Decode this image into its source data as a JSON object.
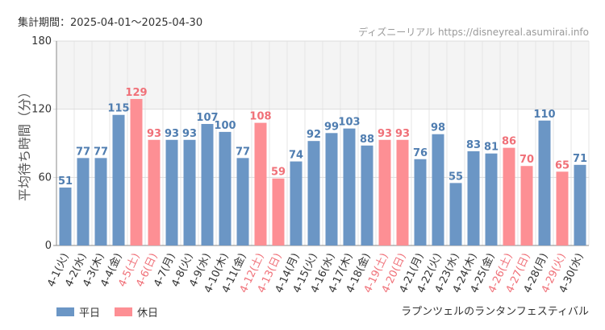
{
  "header": {
    "period": "集計期間：2025-04-01～2025-04-30",
    "source": "ディズニーリアル https://disneyreal.asumirai.info"
  },
  "chart_data": {
    "type": "bar",
    "title": "",
    "subtitle": "ラプンツェルのランタンフェスティバル",
    "ylabel": "平均待ち時間（分）",
    "xlabel": "",
    "ylim": [
      0,
      180
    ],
    "yticks": [
      0,
      60,
      120,
      180
    ],
    "grid": true,
    "legend_position": "bottom-left",
    "categories": [
      "4-1(火)",
      "4-2(水)",
      "4-3(木)",
      "4-4(金)",
      "4-5(土)",
      "4-6(日)",
      "4-7(月)",
      "4-8(火)",
      "4-9(水)",
      "4-10(木)",
      "4-11(金)",
      "4-12(土)",
      "4-13(日)",
      "4-14(月)",
      "4-15(火)",
      "4-16(水)",
      "4-17(木)",
      "4-18(金)",
      "4-19(土)",
      "4-20(日)",
      "4-21(月)",
      "4-22(火)",
      "4-23(水)",
      "4-24(木)",
      "4-25(金)",
      "4-26(土)",
      "4-27(日)",
      "4-28(月)",
      "4-29(火)",
      "4-30(水)"
    ],
    "values": [
      51,
      77,
      77,
      115,
      129,
      93,
      93,
      93,
      107,
      100,
      77,
      108,
      59,
      74,
      92,
      99,
      103,
      88,
      93,
      93,
      76,
      98,
      55,
      83,
      81,
      86,
      70,
      110,
      65,
      71
    ],
    "day_type": [
      "weekday",
      "weekday",
      "weekday",
      "weekday",
      "holiday",
      "holiday",
      "weekday",
      "weekday",
      "weekday",
      "weekday",
      "weekday",
      "holiday",
      "holiday",
      "weekday",
      "weekday",
      "weekday",
      "weekday",
      "weekday",
      "holiday",
      "holiday",
      "weekday",
      "weekday",
      "weekday",
      "weekday",
      "weekday",
      "holiday",
      "holiday",
      "weekday",
      "holiday",
      "weekday"
    ],
    "series": [
      {
        "name": "平日",
        "key": "weekday",
        "color": "#6b96c5",
        "label_color": "#4f7db0"
      },
      {
        "name": "休日",
        "key": "holiday",
        "color": "#fd8f94",
        "label_color": "#f07078"
      }
    ],
    "axis_label_color": "#333333"
  }
}
